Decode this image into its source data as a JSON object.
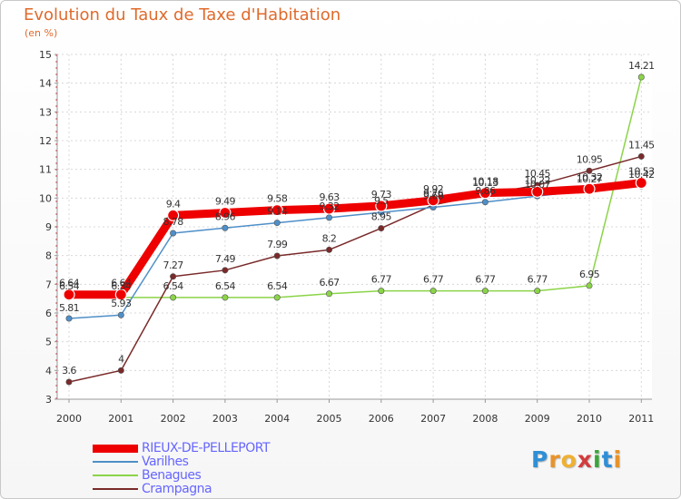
{
  "title": "Evolution du Taux de Taxe d'Habitation",
  "subtitle": "(en %)",
  "logo": "Proxiti",
  "chart_data": {
    "type": "line",
    "x": [
      2000,
      2001,
      2002,
      2003,
      2004,
      2005,
      2006,
      2007,
      2008,
      2009,
      2010,
      2011
    ],
    "ylim": [
      3,
      15
    ],
    "yticks": [
      3,
      4,
      5,
      6,
      7,
      8,
      9,
      10,
      11,
      12,
      13,
      14,
      15
    ],
    "grid": true,
    "legend_position": "bottom-left",
    "series": [
      {
        "name": "RIEUX-DE-PELLEPORT",
        "color": "#ee0000",
        "values": [
          6.64,
          6.64,
          9.4,
          9.49,
          9.58,
          9.63,
          9.73,
          9.92,
          10.18,
          10.22,
          10.32,
          10.53
        ],
        "labels": [
          "6.64",
          "6.64",
          "9.4",
          "9.49",
          "9.58",
          "9.63",
          "9.73",
          "9.92",
          "10.18",
          "10.22",
          "10.32",
          "10.53"
        ]
      },
      {
        "name": "Varilhes",
        "color": "#4f8fc8",
        "values": [
          5.81,
          5.93,
          8.78,
          8.96,
          9.14,
          9.32,
          9.5,
          9.68,
          9.86,
          10.07,
          10.27,
          10.42
        ],
        "labels": [
          "5.81",
          "5.93",
          "8.78",
          "8.96",
          "9.14",
          "9.32",
          "9.5",
          "9.68",
          "9.86",
          "10.07",
          "10.27",
          "10.42"
        ]
      },
      {
        "name": "Benagues",
        "color": "#8bd448",
        "values": [
          6.54,
          6.54,
          6.54,
          6.54,
          6.54,
          6.67,
          6.77,
          6.77,
          6.77,
          6.77,
          6.95,
          14.21
        ],
        "labels": [
          "6.54",
          "6.54",
          "6.54",
          "6.54",
          "6.54",
          "6.67",
          "6.77",
          "6.77",
          "6.77",
          "6.77",
          "6.95",
          "14.21"
        ]
      },
      {
        "name": "Crampagna",
        "color": "#7a2a2a",
        "values": [
          3.6,
          4,
          7.27,
          7.49,
          7.99,
          8.2,
          8.95,
          9.76,
          10.13,
          10.45,
          10.95,
          11.45
        ],
        "labels": [
          "3.6",
          "4",
          "7.27",
          "7.49",
          "7.99",
          "8.2",
          "8.95",
          "9.76",
          "10.13",
          "10.45",
          "10.95",
          "11.45"
        ]
      }
    ]
  }
}
